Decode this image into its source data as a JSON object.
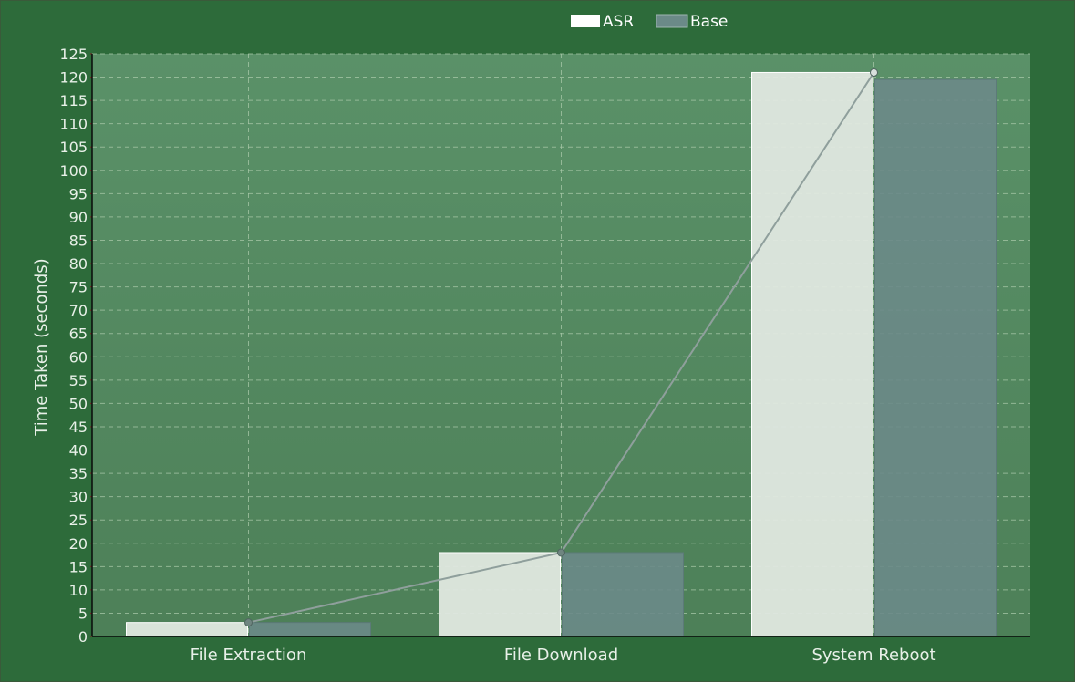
{
  "chart_data": {
    "type": "bar",
    "categories": [
      "File Extraction",
      "File Download",
      "System Reboot"
    ],
    "series": [
      {
        "name": "ASR",
        "values": [
          3,
          18,
          121
        ],
        "color": "#e0e8e0"
      },
      {
        "name": "Base",
        "values": [
          3,
          18,
          119.5
        ],
        "color": "#6b8a88"
      }
    ],
    "overlay_line": {
      "series": "ASR",
      "values": [
        3,
        18,
        121
      ]
    },
    "ylabel": "Time Taken (seconds)",
    "xlabel": "",
    "ylim": [
      0,
      125
    ],
    "ytick_step": 5,
    "grid": true,
    "legend_position": "top-center"
  },
  "colors": {
    "background": "#2d6b3a",
    "plot_background": "#558a60",
    "grid": "#a8c8a8",
    "axis": "#0a0a0a",
    "line": "#8f9f9c"
  }
}
